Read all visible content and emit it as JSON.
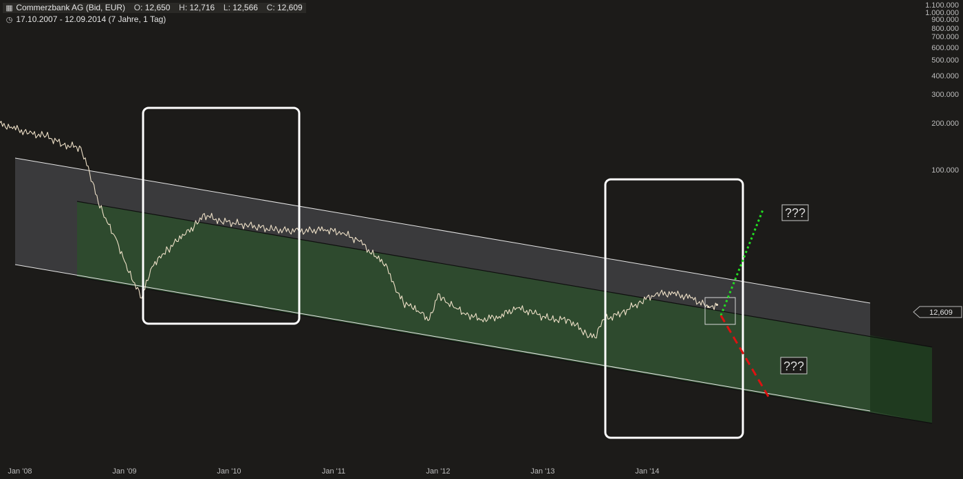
{
  "header": {
    "chart_icon": "candlestick-chart-icon",
    "instrument": "Commerzbank AG (Bid, EUR)",
    "ohlc": [
      {
        "key": "O",
        "value": "12,650"
      },
      {
        "key": "H",
        "value": "12,716"
      },
      {
        "key": "L",
        "value": "12,566"
      },
      {
        "key": "C",
        "value": "12,609"
      }
    ],
    "clock_icon": "clock-icon",
    "range": "17.10.2007 - 12.09.2014 (7 Jahre, 1 Tag)"
  },
  "price_tag": "12,609",
  "annotations": [
    "???",
    "???"
  ],
  "colors": {
    "background": "#1c1b19",
    "price_line": "#efe1c8",
    "upper_channel": "#3a3a3c",
    "green_channel": "#2e4a2e",
    "bull_arrow": "#22dd22",
    "bear_arrow": "#dd1111",
    "box_outline": "#ffffff"
  },
  "chart_data": {
    "type": "line",
    "title": "Commerzbank AG (Bid, EUR)",
    "scale": "log",
    "x_labels": [
      "Jan '08",
      "Jan '09",
      "Jan '10",
      "Jan '11",
      "Jan '12",
      "Jan '13",
      "Jan '14"
    ],
    "y_tick_labels": [
      "1.100.000",
      "1.000.000",
      "900.000",
      "800.000",
      "700.000",
      "600.000",
      "500.000",
      "400.000",
      "300.000",
      "200.000",
      "100.000"
    ],
    "last_value": 12.609,
    "series": [
      {
        "x": [
          "2007-10",
          "2007-12",
          "2008-02",
          "2008-04",
          "2008-06",
          "2008-08",
          "2008-09",
          "2008-10",
          "2008-11",
          "2008-12",
          "2009-01",
          "2009-02",
          "2009-03",
          "2009-04",
          "2009-05",
          "2009-06",
          "2009-07",
          "2009-08",
          "2009-09",
          "2009-10",
          "2009-12",
          "2010-03",
          "2010-06",
          "2010-09",
          "2010-12",
          "2011-02",
          "2011-04",
          "2011-06",
          "2011-07",
          "2011-08",
          "2011-09",
          "2011-10",
          "2011-11",
          "2011-12",
          "2012-01",
          "2012-02",
          "2012-03",
          "2012-04",
          "2012-06",
          "2012-08",
          "2012-10",
          "2012-12",
          "2013-02",
          "2013-04",
          "2013-06",
          "2013-07",
          "2013-08",
          "2013-10",
          "2013-12",
          "2014-02",
          "2014-04",
          "2014-06",
          "2014-08",
          "2014-09"
        ],
        "values": [
          218,
          205,
          185,
          178,
          155,
          148,
          100,
          62,
          46,
          36,
          25,
          18,
          14,
          22,
          27,
          30,
          34,
          38,
          43,
          52,
          47,
          44,
          41,
          40,
          41,
          39,
          34,
          26,
          24,
          17,
          13,
          12,
          11,
          10,
          15,
          13,
          12,
          11,
          10,
          10.5,
          12,
          11,
          10,
          10,
          8,
          7.5,
          10,
          11,
          13,
          15,
          15,
          14,
          12.2,
          12.6
        ]
      }
    ],
    "markers": [
      {
        "date": "2014-08",
        "value": 12.2
      },
      {
        "date": "2014-09",
        "value": 12.6
      }
    ]
  }
}
